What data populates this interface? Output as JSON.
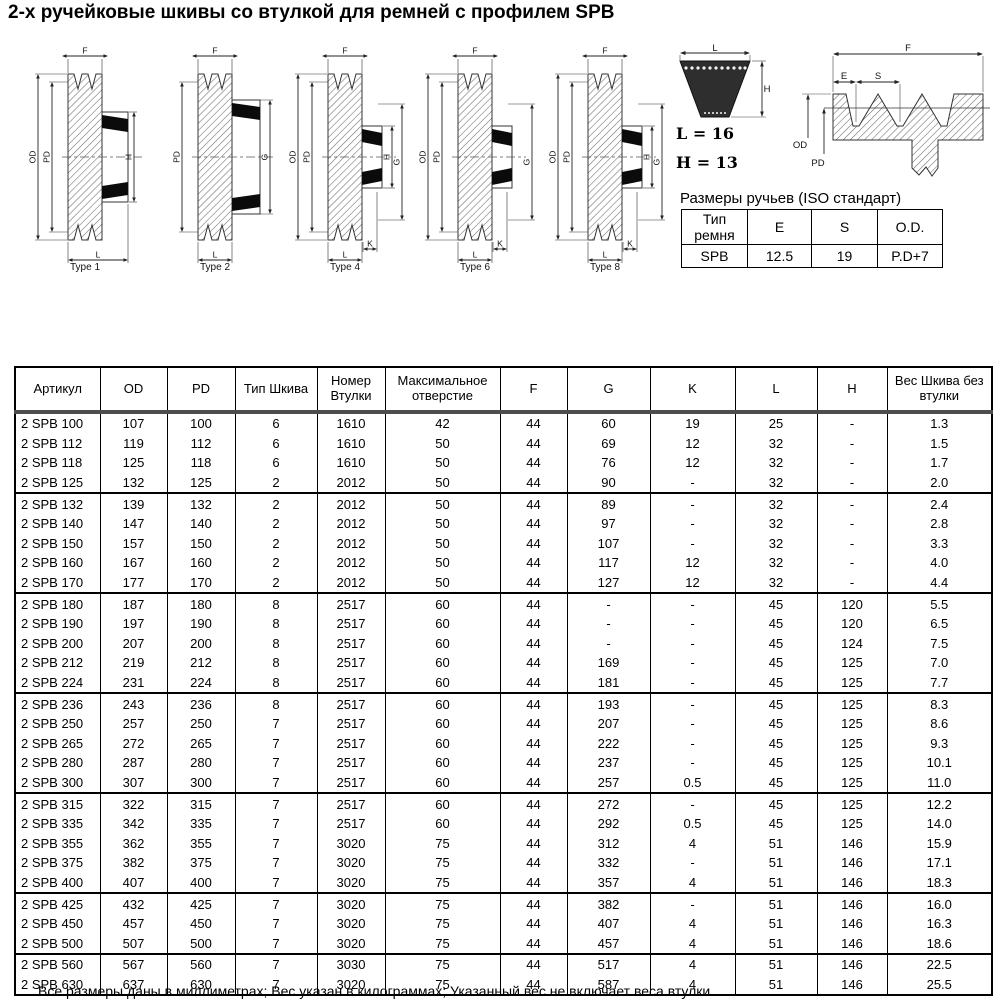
{
  "title": "2-х ручейковые шкивы со втулкой для ремней с профилем SPB",
  "diagrams": {
    "pulleys": [
      {
        "caption": "Type 1",
        "labels": [
          "F",
          "OD",
          "PD",
          "H",
          "L"
        ]
      },
      {
        "caption": "Type 2",
        "labels": [
          "F",
          "PD",
          "G",
          "L"
        ]
      },
      {
        "caption": "Type 4",
        "labels": [
          "F",
          "OD",
          "PD",
          "H",
          "G",
          "K",
          "L"
        ]
      },
      {
        "caption": "Type 6",
        "labels": [
          "F",
          "OD",
          "PD",
          "G",
          "K",
          "L"
        ]
      },
      {
        "caption": "Type 8",
        "labels": [
          "F",
          "OD",
          "PD",
          "H",
          "G",
          "K",
          "L"
        ]
      }
    ],
    "belt": {
      "width_label": "L",
      "height_label": "H",
      "l_value": "L = 16",
      "h_value": "H = 13"
    },
    "groove": {
      "f_label": "F",
      "e_label": "E",
      "s_label": "S",
      "od_label": "OD",
      "pd_label": "PD"
    }
  },
  "groove_table": {
    "title": "Размеры ручьев (ISO стандарт)",
    "headers": [
      "Тип ремня",
      "E",
      "S",
      "O.D."
    ],
    "row": [
      "SPB",
      "12.5",
      "19",
      "P.D+7"
    ]
  },
  "main_table": {
    "headers": [
      "Артикул",
      "OD",
      "PD",
      "Тип Шкива",
      "Номер Втулки",
      "Максимальное отверстие",
      "F",
      "G",
      "K",
      "L",
      "H",
      "Вес Шкива без втулки"
    ],
    "groups": [
      [
        [
          "2 SPB 100",
          "107",
          "100",
          "6",
          "1610",
          "42",
          "44",
          "60",
          "19",
          "25",
          "-",
          "1.3"
        ],
        [
          "2 SPB 112",
          "119",
          "112",
          "6",
          "1610",
          "50",
          "44",
          "69",
          "12",
          "32",
          "-",
          "1.5"
        ],
        [
          "2 SPB 118",
          "125",
          "118",
          "6",
          "1610",
          "50",
          "44",
          "76",
          "12",
          "32",
          "-",
          "1.7"
        ],
        [
          "2 SPB 125",
          "132",
          "125",
          "2",
          "2012",
          "50",
          "44",
          "90",
          "-",
          "32",
          "-",
          "2.0"
        ]
      ],
      [
        [
          "2 SPB 132",
          "139",
          "132",
          "2",
          "2012",
          "50",
          "44",
          "89",
          "-",
          "32",
          "-",
          "2.4"
        ],
        [
          "2 SPB 140",
          "147",
          "140",
          "2",
          "2012",
          "50",
          "44",
          "97",
          "-",
          "32",
          "-",
          "2.8"
        ],
        [
          "2 SPB 150",
          "157",
          "150",
          "2",
          "2012",
          "50",
          "44",
          "107",
          "-",
          "32",
          "-",
          "3.3"
        ],
        [
          "2 SPB 160",
          "167",
          "160",
          "2",
          "2012",
          "50",
          "44",
          "117",
          "12",
          "32",
          "-",
          "4.0"
        ],
        [
          "2 SPB 170",
          "177",
          "170",
          "2",
          "2012",
          "50",
          "44",
          "127",
          "12",
          "32",
          "-",
          "4.4"
        ]
      ],
      [
        [
          "2 SPB 180",
          "187",
          "180",
          "8",
          "2517",
          "60",
          "44",
          "-",
          "-",
          "45",
          "120",
          "5.5"
        ],
        [
          "2 SPB 190",
          "197",
          "190",
          "8",
          "2517",
          "60",
          "44",
          "-",
          "-",
          "45",
          "120",
          "6.5"
        ],
        [
          "2 SPB 200",
          "207",
          "200",
          "8",
          "2517",
          "60",
          "44",
          "-",
          "-",
          "45",
          "124",
          "7.5"
        ],
        [
          "2 SPB 212",
          "219",
          "212",
          "8",
          "2517",
          "60",
          "44",
          "169",
          "-",
          "45",
          "125",
          "7.0"
        ],
        [
          "2 SPB 224",
          "231",
          "224",
          "8",
          "2517",
          "60",
          "44",
          "181",
          "-",
          "45",
          "125",
          "7.7"
        ]
      ],
      [
        [
          "2 SPB 236",
          "243",
          "236",
          "8",
          "2517",
          "60",
          "44",
          "193",
          "-",
          "45",
          "125",
          "8.3"
        ],
        [
          "2 SPB 250",
          "257",
          "250",
          "7",
          "2517",
          "60",
          "44",
          "207",
          "-",
          "45",
          "125",
          "8.6"
        ],
        [
          "2 SPB 265",
          "272",
          "265",
          "7",
          "2517",
          "60",
          "44",
          "222",
          "-",
          "45",
          "125",
          "9.3"
        ],
        [
          "2 SPB 280",
          "287",
          "280",
          "7",
          "2517",
          "60",
          "44",
          "237",
          "-",
          "45",
          "125",
          "10.1"
        ],
        [
          "2 SPB 300",
          "307",
          "300",
          "7",
          "2517",
          "60",
          "44",
          "257",
          "0.5",
          "45",
          "125",
          "11.0"
        ]
      ],
      [
        [
          "2 SPB 315",
          "322",
          "315",
          "7",
          "2517",
          "60",
          "44",
          "272",
          "-",
          "45",
          "125",
          "12.2"
        ],
        [
          "2 SPB 335",
          "342",
          "335",
          "7",
          "2517",
          "60",
          "44",
          "292",
          "0.5",
          "45",
          "125",
          "14.0"
        ],
        [
          "2 SPB 355",
          "362",
          "355",
          "7",
          "3020",
          "75",
          "44",
          "312",
          "4",
          "51",
          "146",
          "15.9"
        ],
        [
          "2 SPB 375",
          "382",
          "375",
          "7",
          "3020",
          "75",
          "44",
          "332",
          "-",
          "51",
          "146",
          "17.1"
        ],
        [
          "2 SPB 400",
          "407",
          "400",
          "7",
          "3020",
          "75",
          "44",
          "357",
          "4",
          "51",
          "146",
          "18.3"
        ]
      ],
      [
        [
          "2 SPB 425",
          "432",
          "425",
          "7",
          "3020",
          "75",
          "44",
          "382",
          "-",
          "51",
          "146",
          "16.0"
        ],
        [
          "2 SPB 450",
          "457",
          "450",
          "7",
          "3020",
          "75",
          "44",
          "407",
          "4",
          "51",
          "146",
          "16.3"
        ],
        [
          "2 SPB 500",
          "507",
          "500",
          "7",
          "3020",
          "75",
          "44",
          "457",
          "4",
          "51",
          "146",
          "18.6"
        ]
      ],
      [
        [
          "2 SPB 560",
          "567",
          "560",
          "7",
          "3030",
          "75",
          "44",
          "517",
          "4",
          "51",
          "146",
          "22.5"
        ],
        [
          "2 SPB 630",
          "637",
          "630",
          "7",
          "3020",
          "75",
          "44",
          "587",
          "4",
          "51",
          "146",
          "25.5"
        ]
      ]
    ]
  },
  "footer": "Все размеры даны в миллиметрах; Вес указан в килограммах; Указанный вес не включает веса втулки"
}
